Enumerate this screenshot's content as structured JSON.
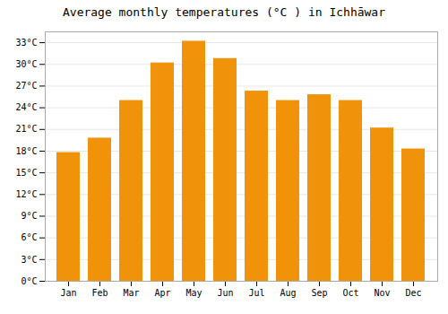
{
  "chart_data": {
    "type": "bar",
    "title": "Average monthly temperatures (°C ) in Ichhāwar",
    "categories": [
      "Jan",
      "Feb",
      "Mar",
      "Apr",
      "May",
      "Jun",
      "Jul",
      "Aug",
      "Sep",
      "Oct",
      "Nov",
      "Dec"
    ],
    "values": [
      17.8,
      19.8,
      25.0,
      30.2,
      33.2,
      30.8,
      26.3,
      25.0,
      25.8,
      25.0,
      21.2,
      18.3
    ],
    "color": "#F0920A",
    "ylim": [
      0,
      34.5
    ],
    "yticks": [
      {
        "value": 0,
        "label": "0°C"
      },
      {
        "value": 3,
        "label": "3°C"
      },
      {
        "value": 6,
        "label": "6°C"
      },
      {
        "value": 9,
        "label": "9°C"
      },
      {
        "value": 12,
        "label": "12°C"
      },
      {
        "value": 15,
        "label": "15°C"
      },
      {
        "value": 18,
        "label": "18°C"
      },
      {
        "value": 21,
        "label": "21°C"
      },
      {
        "value": 24,
        "label": "24°C"
      },
      {
        "value": 27,
        "label": "27°C"
      },
      {
        "value": 30,
        "label": "30°C"
      },
      {
        "value": 33,
        "label": "33°C"
      }
    ],
    "grid": true
  }
}
